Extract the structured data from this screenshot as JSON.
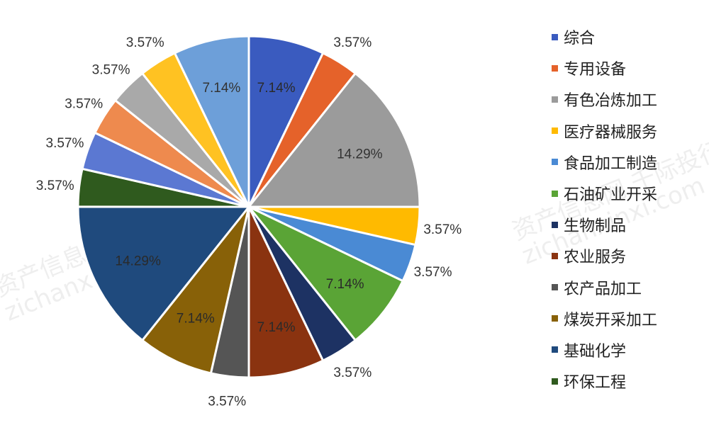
{
  "chart_data": {
    "type": "pie",
    "title": "",
    "legend_position": "right",
    "slices": [
      {
        "label": "综合",
        "value": 7.14,
        "value_label": "7.14%",
        "color": "#3a5bbf"
      },
      {
        "label": "专用设备",
        "value": 3.57,
        "value_label": "3.57%",
        "color": "#e5622a"
      },
      {
        "label": "有色冶炼加工",
        "value": 14.29,
        "value_label": "14.29%",
        "color": "#9b9b9b"
      },
      {
        "label": "医疗器械服务",
        "value": 3.57,
        "value_label": "3.57%",
        "color": "#ffba00"
      },
      {
        "label": "食品加工制造",
        "value": 3.57,
        "value_label": "3.57%",
        "color": "#4a8ad4"
      },
      {
        "label": "石油矿业开采",
        "value": 7.14,
        "value_label": "7.14%",
        "color": "#5aa436"
      },
      {
        "label": "生物制品",
        "value": 3.57,
        "value_label": "3.57%",
        "color": "#1d3263"
      },
      {
        "label": "农业服务",
        "value": 7.14,
        "value_label": "7.14%",
        "color": "#8a3310"
      },
      {
        "label": "农产品加工",
        "value": 3.57,
        "value_label": "3.57%",
        "color": "#555555"
      },
      {
        "label": "煤炭开采加工",
        "value": 7.14,
        "value_label": "7.14%",
        "color": "#886108"
      },
      {
        "label": "基础化学",
        "value": 14.29,
        "value_label": "14.29%",
        "color": "#1f4a7d"
      },
      {
        "label": "环保工程",
        "value": 3.57,
        "value_label": "3.57%",
        "color": "#2f5a1e"
      },
      {
        "label": "",
        "value": 3.57,
        "value_label": "3.57%",
        "color": "#5b78d2"
      },
      {
        "label": "",
        "value": 3.57,
        "value_label": "3.57%",
        "color": "#ee8a4e"
      },
      {
        "label": "",
        "value": 3.57,
        "value_label": "3.57%",
        "color": "#a9a9a9"
      },
      {
        "label": "",
        "value": 3.57,
        "value_label": "3.57%",
        "color": "#ffc222"
      },
      {
        "label": "",
        "value": 7.14,
        "value_label": "7.14%",
        "color": "#6d9fd9"
      }
    ]
  },
  "watermark": {
    "line1": "资产信息网 千际投行",
    "line2": "zichanxinxi.com"
  }
}
